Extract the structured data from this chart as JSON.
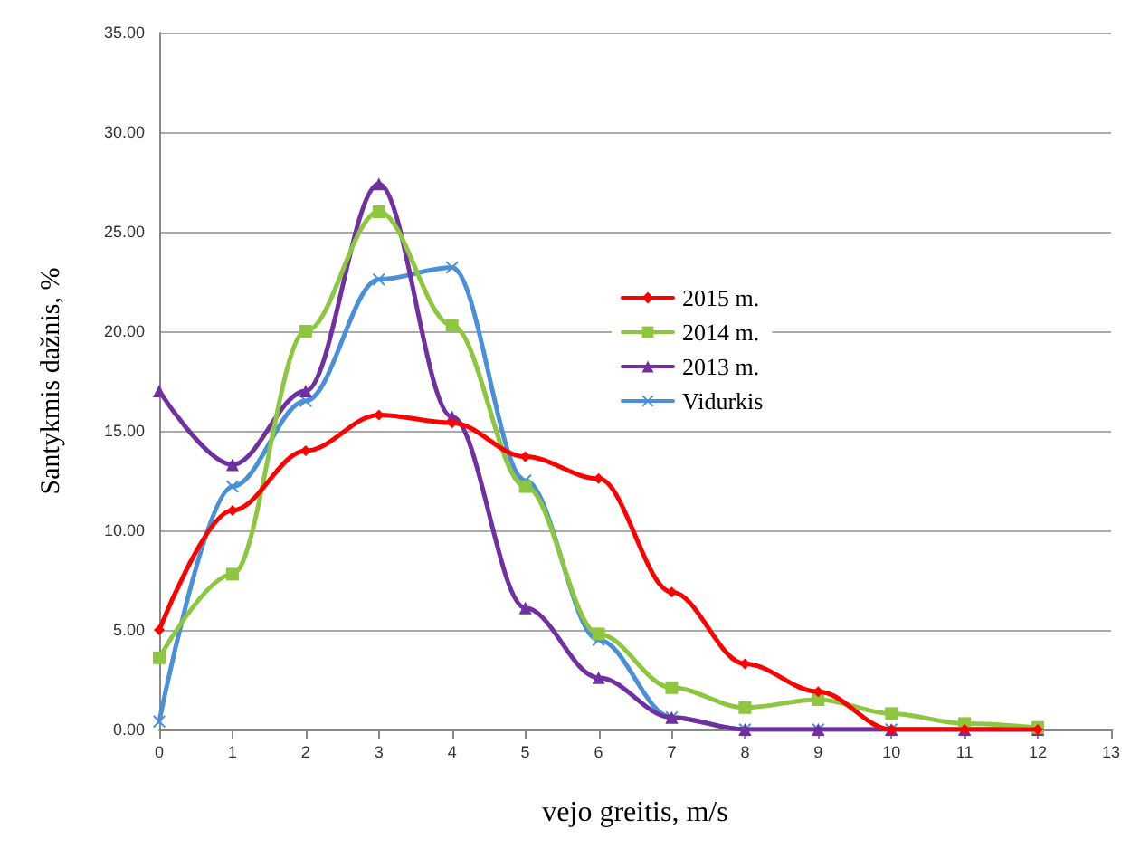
{
  "chart_data": {
    "type": "line",
    "xlabel": "vejo greitis, m/s",
    "ylabel": "Santykmis dažnis, %",
    "x": [
      0,
      1,
      2,
      3,
      4,
      5,
      6,
      7,
      8,
      9,
      10,
      11,
      12
    ],
    "series": [
      {
        "name": "2015 m.",
        "color": "#ff0000",
        "marker": "diamond",
        "values": [
          5.0,
          11.0,
          14.0,
          15.8,
          15.4,
          13.7,
          12.6,
          6.9,
          3.3,
          1.9,
          0,
          0,
          0
        ]
      },
      {
        "name": "2014 m.",
        "color": "#8dc63f",
        "marker": "square",
        "values": [
          3.6,
          7.8,
          20.0,
          26.0,
          20.3,
          12.2,
          4.8,
          2.1,
          1.1,
          1.5,
          0.8,
          0.3,
          0.1
        ]
      },
      {
        "name": "2013 m.",
        "color": "#7030a0",
        "marker": "triangle",
        "values": [
          17.0,
          13.3,
          17.0,
          27.4,
          15.7,
          6.1,
          2.6,
          0.6,
          0,
          0,
          0,
          0,
          0
        ]
      },
      {
        "name": "Vidurkis",
        "color": "#4a90d9",
        "marker": "cross",
        "values": [
          0.4,
          12.2,
          16.5,
          22.6,
          23.2,
          12.5,
          4.5,
          0.6,
          0,
          0,
          0,
          0,
          0
        ]
      }
    ],
    "xlim": [
      0,
      13
    ],
    "xticks": [
      0,
      1,
      2,
      3,
      4,
      5,
      6,
      7,
      8,
      9,
      10,
      11,
      12,
      13
    ],
    "ylim": [
      0,
      35
    ],
    "yticks": [
      {
        "value": 0,
        "label": "0.00"
      },
      {
        "value": 5,
        "label": "5.00"
      },
      {
        "value": 10,
        "label": "10.00"
      },
      {
        "value": 15,
        "label": "15.00"
      },
      {
        "value": 20,
        "label": "20.00"
      },
      {
        "value": 25,
        "label": "25.00"
      },
      {
        "value": 30,
        "label": "30.00"
      },
      {
        "value": 35,
        "label": "35.00"
      }
    ],
    "grid": "y",
    "legend": "right",
    "line_style": "solid"
  }
}
